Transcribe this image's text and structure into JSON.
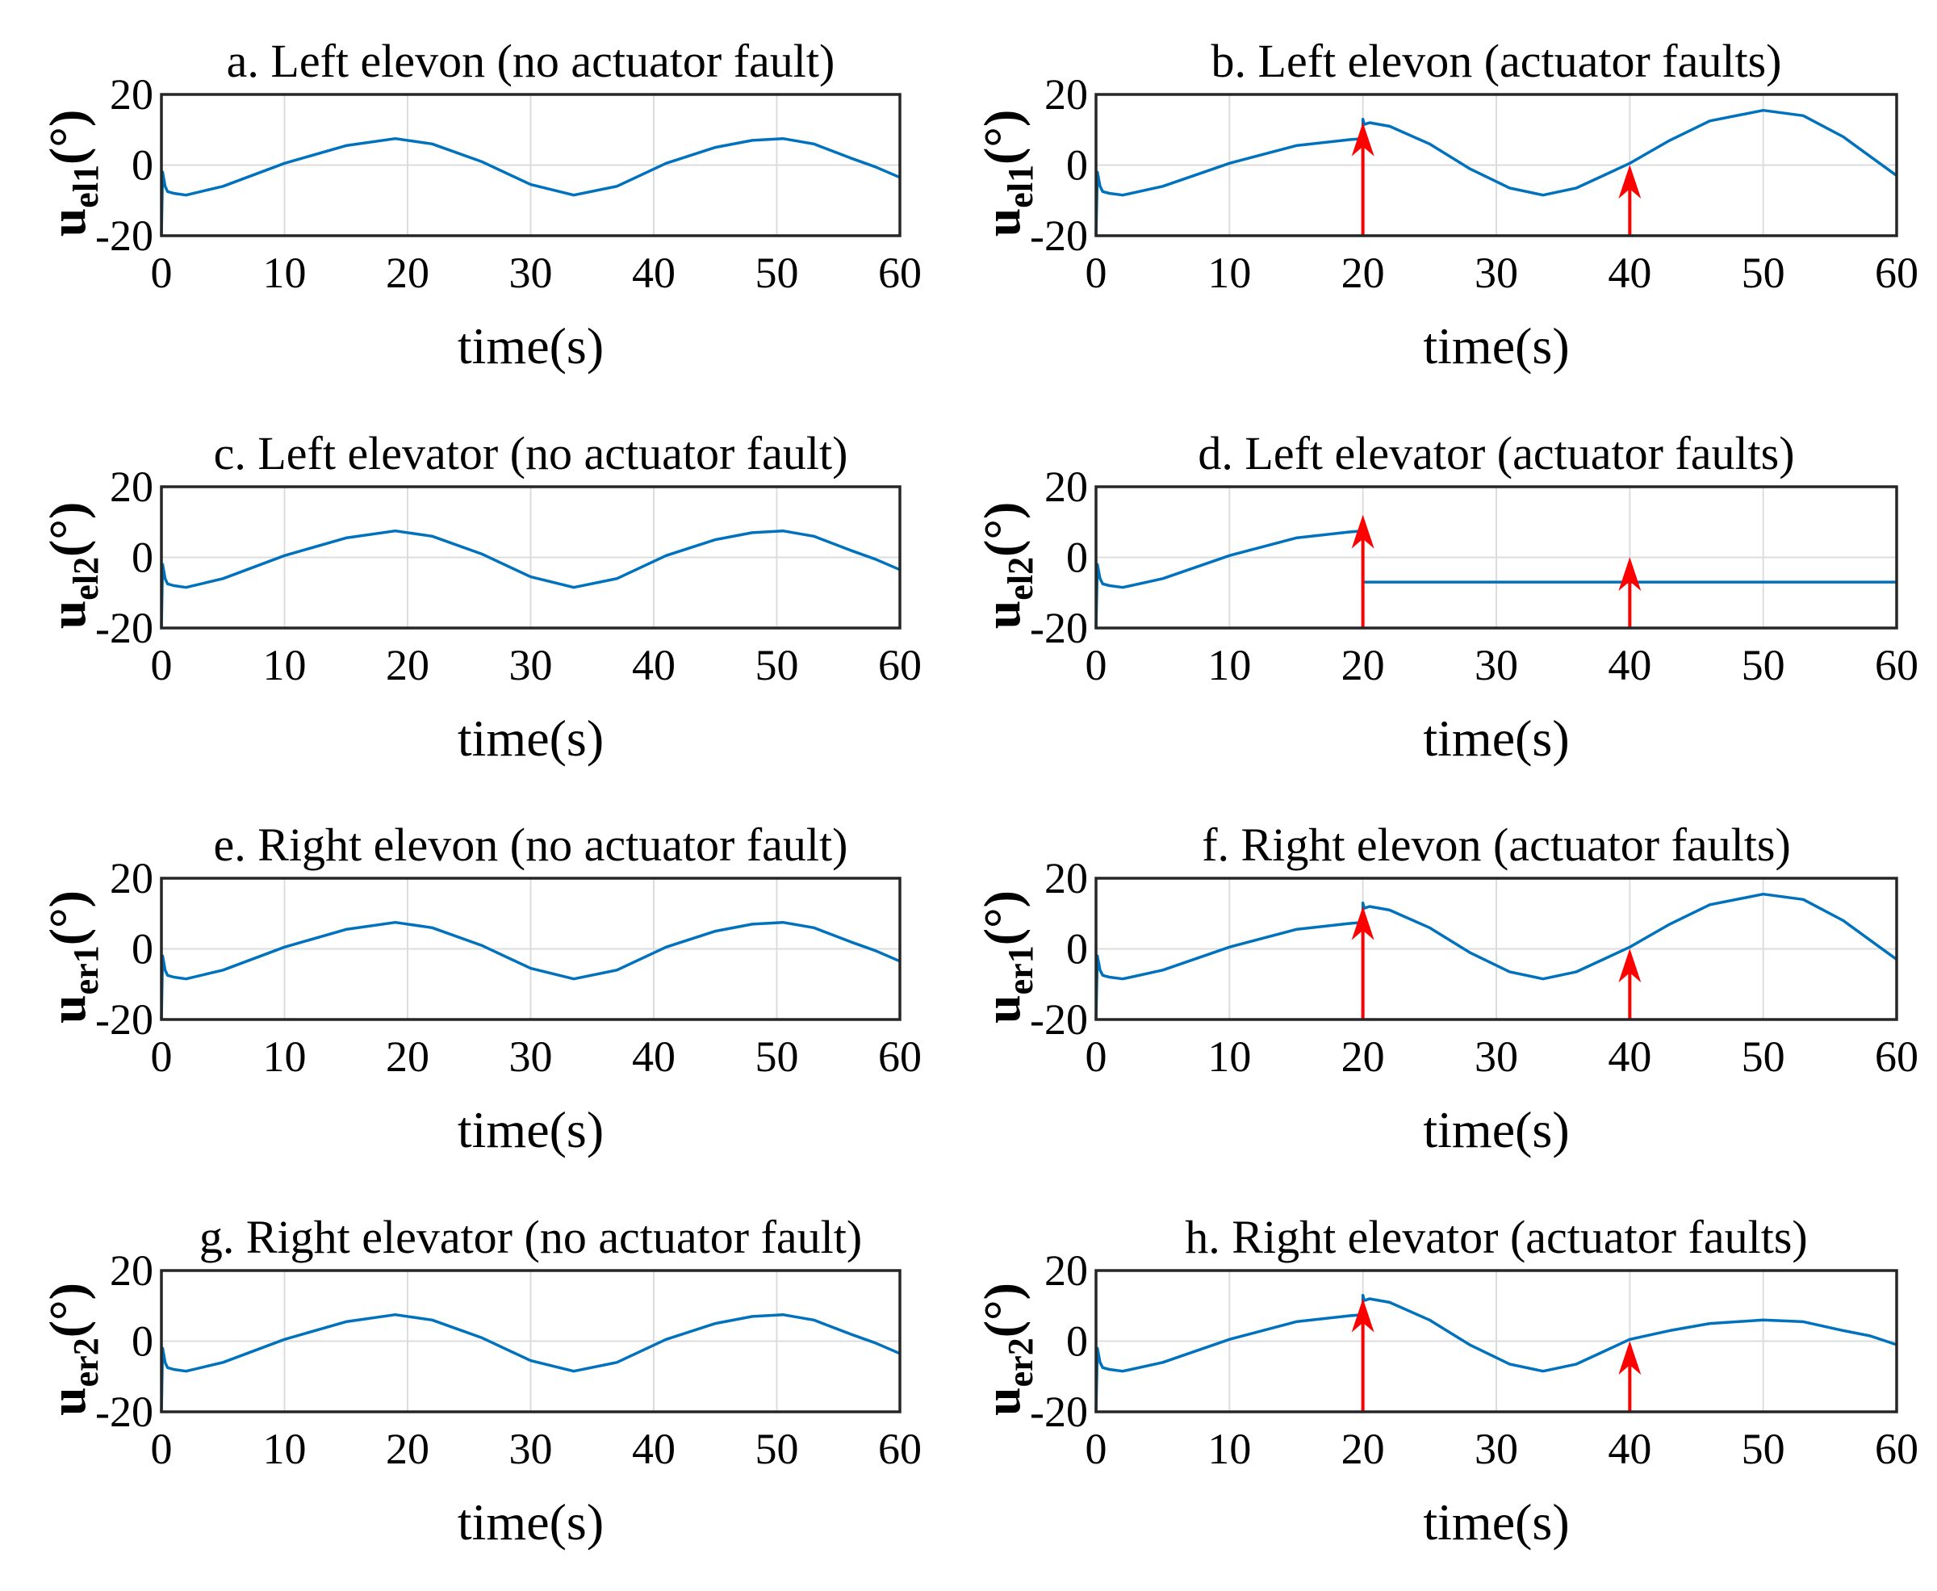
{
  "chart_data": [
    {
      "type": "line",
      "panel": "a",
      "title": "a. Left elevon (no actuator fault)",
      "ylabel_main": "u",
      "ylabel_sub": "el1",
      "ylabel_unit": "(°)",
      "xlabel": "time(s)",
      "xlim": [
        0,
        60
      ],
      "ylim": [
        -20,
        20
      ],
      "xticks": [
        0,
        10,
        20,
        30,
        40,
        50,
        60
      ],
      "yticks": [
        -20,
        0,
        20
      ],
      "grid": true,
      "series": [
        {
          "name": "u_el1",
          "color": "#0072BD",
          "x": [
            0,
            0.1,
            0.3,
            0.5,
            1,
            2,
            5,
            10,
            15,
            19,
            22,
            26,
            30,
            33.5,
            37,
            41,
            45,
            48,
            50.5,
            53,
            56,
            58,
            60
          ],
          "y": [
            -20,
            -2,
            -6,
            -7.5,
            -8,
            -8.5,
            -6,
            0.5,
            5.5,
            7.5,
            6,
            1,
            -5.5,
            -8.5,
            -6,
            0.5,
            5,
            7,
            7.5,
            6,
            2,
            -0.5,
            -3.5
          ]
        }
      ],
      "fault_arrows": []
    },
    {
      "type": "line",
      "panel": "b",
      "title": "b. Left elevon (actuator faults)",
      "ylabel_main": "u",
      "ylabel_sub": "el1",
      "ylabel_unit": "(°)",
      "xlabel": "time(s)",
      "xlim": [
        0,
        60
      ],
      "ylim": [
        -20,
        20
      ],
      "xticks": [
        0,
        10,
        20,
        30,
        40,
        50,
        60
      ],
      "yticks": [
        -20,
        0,
        20
      ],
      "grid": true,
      "series": [
        {
          "name": "u_el1",
          "color": "#0072BD",
          "x": [
            0,
            0.1,
            0.3,
            0.5,
            1,
            2,
            5,
            10,
            15,
            19,
            20,
            20,
            20.1,
            20.5,
            22,
            25,
            28,
            31,
            33.5,
            36,
            38,
            40,
            43,
            46,
            50,
            53,
            56,
            58,
            60
          ],
          "y": [
            -20,
            -2,
            -6,
            -7.5,
            -8,
            -8.5,
            -6,
            0.5,
            5.5,
            7.2,
            7.5,
            13,
            11.5,
            12,
            11,
            6,
            -1,
            -6.5,
            -8.5,
            -6.5,
            -3,
            0.5,
            7,
            12.5,
            15.5,
            14,
            8,
            2.5,
            -3
          ]
        }
      ],
      "fault_arrows": [
        20,
        40
      ]
    },
    {
      "type": "line",
      "panel": "c",
      "title": "c. Left elevator (no actuator fault)",
      "ylabel_main": "u",
      "ylabel_sub": "el2",
      "ylabel_unit": "(°)",
      "xlabel": "time(s)",
      "xlim": [
        0,
        60
      ],
      "ylim": [
        -20,
        20
      ],
      "xticks": [
        0,
        10,
        20,
        30,
        40,
        50,
        60
      ],
      "yticks": [
        -20,
        0,
        20
      ],
      "grid": true,
      "series": [
        {
          "name": "u_el2",
          "color": "#0072BD",
          "x": [
            0,
            0.1,
            0.3,
            0.5,
            1,
            2,
            5,
            10,
            15,
            19,
            22,
            26,
            30,
            33.5,
            37,
            41,
            45,
            48,
            50.5,
            53,
            56,
            58,
            60
          ],
          "y": [
            -20,
            -2,
            -6,
            -7.5,
            -8,
            -8.5,
            -6,
            0.5,
            5.5,
            7.5,
            6,
            1,
            -5.5,
            -8.5,
            -6,
            0.5,
            5,
            7,
            7.5,
            6,
            2,
            -0.5,
            -3.5
          ]
        }
      ],
      "fault_arrows": []
    },
    {
      "type": "line",
      "panel": "d",
      "title": "d. Left elevator (actuator faults)",
      "ylabel_main": "u",
      "ylabel_sub": "el2",
      "ylabel_unit": "(°)",
      "xlabel": "time(s)",
      "xlim": [
        0,
        60
      ],
      "ylim": [
        -20,
        20
      ],
      "xticks": [
        0,
        10,
        20,
        30,
        40,
        50,
        60
      ],
      "yticks": [
        -20,
        0,
        20
      ],
      "grid": true,
      "series": [
        {
          "name": "u_el2",
          "color": "#0072BD",
          "x": [
            0,
            0.1,
            0.3,
            0.5,
            1,
            2,
            5,
            10,
            15,
            19,
            20,
            20,
            40,
            60
          ],
          "y": [
            -20,
            -2,
            -6,
            -7.5,
            -8,
            -8.5,
            -6,
            0.5,
            5.5,
            7.2,
            7.5,
            -7,
            -7,
            -7
          ]
        }
      ],
      "fault_arrows": [
        20,
        40
      ]
    },
    {
      "type": "line",
      "panel": "e",
      "title": "e. Right elevon (no actuator fault)",
      "ylabel_main": "u",
      "ylabel_sub": "er1",
      "ylabel_unit": "(°)",
      "xlabel": "time(s)",
      "xlim": [
        0,
        60
      ],
      "ylim": [
        -20,
        20
      ],
      "xticks": [
        0,
        10,
        20,
        30,
        40,
        50,
        60
      ],
      "yticks": [
        -20,
        0,
        20
      ],
      "grid": true,
      "series": [
        {
          "name": "u_er1",
          "color": "#0072BD",
          "x": [
            0,
            0.1,
            0.3,
            0.5,
            1,
            2,
            5,
            10,
            15,
            19,
            22,
            26,
            30,
            33.5,
            37,
            41,
            45,
            48,
            50.5,
            53,
            56,
            58,
            60
          ],
          "y": [
            -20,
            -2,
            -6,
            -7.5,
            -8,
            -8.5,
            -6,
            0.5,
            5.5,
            7.5,
            6,
            1,
            -5.5,
            -8.5,
            -6,
            0.5,
            5,
            7,
            7.5,
            6,
            2,
            -0.5,
            -3.5
          ]
        }
      ],
      "fault_arrows": []
    },
    {
      "type": "line",
      "panel": "f",
      "title": "f. Right elevon (actuator faults)",
      "ylabel_main": "u",
      "ylabel_sub": "er1",
      "ylabel_unit": "(°)",
      "xlabel": "time(s)",
      "xlim": [
        0,
        60
      ],
      "ylim": [
        -20,
        20
      ],
      "xticks": [
        0,
        10,
        20,
        30,
        40,
        50,
        60
      ],
      "yticks": [
        -20,
        0,
        20
      ],
      "grid": true,
      "series": [
        {
          "name": "u_er1",
          "color": "#0072BD",
          "x": [
            0,
            0.1,
            0.3,
            0.5,
            1,
            2,
            5,
            10,
            15,
            19,
            20,
            20,
            20.1,
            20.5,
            22,
            25,
            28,
            31,
            33.5,
            36,
            38,
            40,
            43,
            46,
            50,
            53,
            56,
            58,
            60
          ],
          "y": [
            -20,
            -2,
            -6,
            -7.5,
            -8,
            -8.5,
            -6,
            0.5,
            5.5,
            7.2,
            7.5,
            13,
            11.5,
            12,
            11,
            6,
            -1,
            -6.5,
            -8.5,
            -6.5,
            -3,
            0.5,
            7,
            12.5,
            15.5,
            14,
            8,
            2.5,
            -3
          ]
        }
      ],
      "fault_arrows": [
        20,
        40
      ]
    },
    {
      "type": "line",
      "panel": "g",
      "title": "g. Right elevator (no actuator fault)",
      "ylabel_main": "u",
      "ylabel_sub": "er2",
      "ylabel_unit": "(°)",
      "xlabel": "time(s)",
      "xlim": [
        0,
        60
      ],
      "ylim": [
        -20,
        20
      ],
      "xticks": [
        0,
        10,
        20,
        30,
        40,
        50,
        60
      ],
      "yticks": [
        -20,
        0,
        20
      ],
      "grid": true,
      "series": [
        {
          "name": "u_er2",
          "color": "#0072BD",
          "x": [
            0,
            0.1,
            0.3,
            0.5,
            1,
            2,
            5,
            10,
            15,
            19,
            22,
            26,
            30,
            33.5,
            37,
            41,
            45,
            48,
            50.5,
            53,
            56,
            58,
            60
          ],
          "y": [
            -20,
            -2,
            -6,
            -7.5,
            -8,
            -8.5,
            -6,
            0.5,
            5.5,
            7.5,
            6,
            1,
            -5.5,
            -8.5,
            -6,
            0.5,
            5,
            7,
            7.5,
            6,
            2,
            -0.5,
            -3.5
          ]
        }
      ],
      "fault_arrows": []
    },
    {
      "type": "line",
      "panel": "h",
      "title": "h. Right elevator (actuator faults)",
      "ylabel_main": "u",
      "ylabel_sub": "er2",
      "ylabel_unit": "(°)",
      "xlabel": "time(s)",
      "xlim": [
        0,
        60
      ],
      "ylim": [
        -20,
        20
      ],
      "xticks": [
        0,
        10,
        20,
        30,
        40,
        50,
        60
      ],
      "yticks": [
        -20,
        0,
        20
      ],
      "grid": true,
      "series": [
        {
          "name": "u_er2",
          "color": "#0072BD",
          "x": [
            0,
            0.1,
            0.3,
            0.5,
            1,
            2,
            5,
            10,
            15,
            19,
            20,
            20,
            20.1,
            20.5,
            22,
            25,
            28,
            31,
            33.5,
            36,
            38,
            40,
            43,
            46,
            50,
            53,
            56,
            58,
            60
          ],
          "y": [
            -20,
            -2,
            -6,
            -7.5,
            -8,
            -8.5,
            -6,
            0.5,
            5.5,
            7.2,
            7.5,
            13,
            11.5,
            12,
            11,
            6,
            -1,
            -6.5,
            -8.5,
            -6.5,
            -3,
            0.5,
            3,
            5,
            6,
            5.5,
            3,
            1.5,
            -1
          ]
        }
      ],
      "fault_arrows": [
        20,
        40
      ]
    }
  ],
  "colors": {
    "line": "#0072BD",
    "arrow": "#FF0000",
    "grid": "#dcdcdc",
    "axis": "#262626"
  }
}
